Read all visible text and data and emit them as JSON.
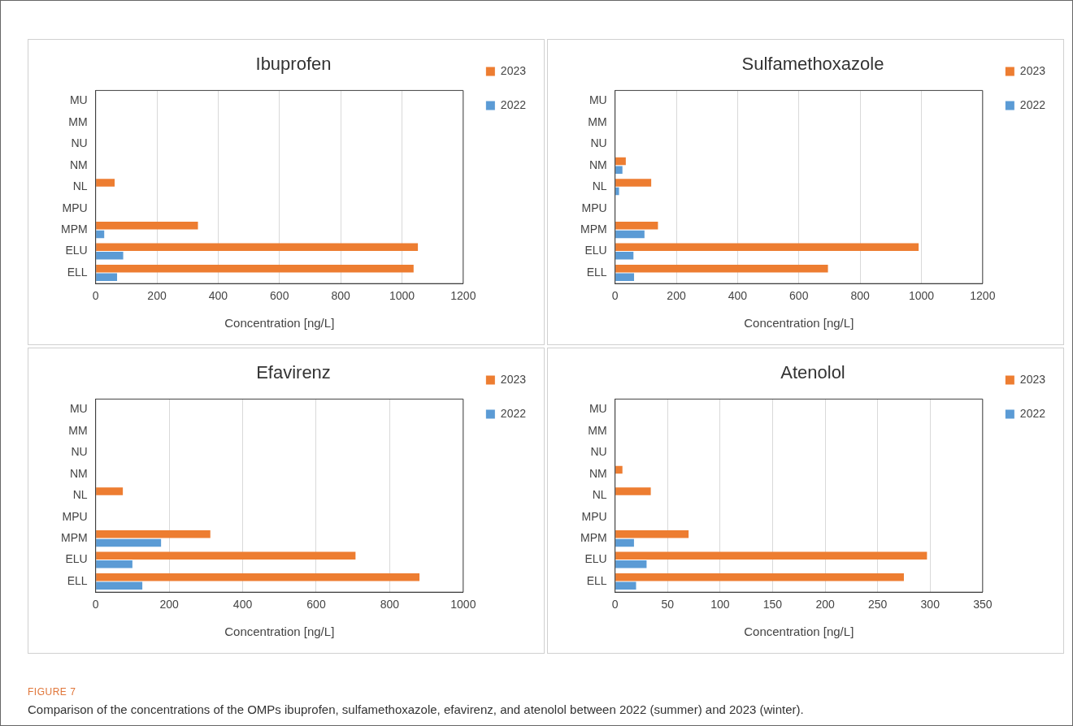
{
  "chart_data": [
    {
      "type": "bar",
      "orientation": "horizontal",
      "title": "Ibuprofen",
      "xlabel": "Concentration [ng/L]",
      "categories": [
        "MU",
        "MM",
        "NU",
        "NM",
        "NL",
        "MPU",
        "MPM",
        "ELU",
        "ELL"
      ],
      "xlim": [
        0,
        1200
      ],
      "xticks": [
        0,
        200,
        400,
        600,
        800,
        1000,
        1200
      ],
      "grid": "x",
      "legend": "right",
      "series": [
        {
          "name": "2023",
          "color": "#ed7d31",
          "values": [
            null,
            null,
            null,
            null,
            62,
            null,
            334,
            1052,
            1038
          ]
        },
        {
          "name": "2022",
          "color": "#5b9bd5",
          "values": [
            null,
            null,
            null,
            null,
            null,
            null,
            28,
            90,
            70
          ]
        }
      ]
    },
    {
      "type": "bar",
      "orientation": "horizontal",
      "title": "Sulfamethoxazole",
      "xlabel": "Concentration [ng/L]",
      "categories": [
        "MU",
        "MM",
        "NU",
        "NM",
        "NL",
        "MPU",
        "MPM",
        "ELU",
        "ELL"
      ],
      "xlim": [
        0,
        1200
      ],
      "xticks": [
        0,
        200,
        400,
        600,
        800,
        1000,
        1200
      ],
      "grid": "x",
      "legend": "right",
      "series": [
        {
          "name": "2023",
          "color": "#ed7d31",
          "values": [
            null,
            null,
            null,
            35,
            118,
            null,
            140,
            991,
            695
          ]
        },
        {
          "name": "2022",
          "color": "#5b9bd5",
          "values": [
            null,
            null,
            null,
            24,
            13,
            null,
            96,
            60,
            62
          ]
        }
      ]
    },
    {
      "type": "bar",
      "orientation": "horizontal",
      "title": "Efavirenz",
      "xlabel": "Concentration [ng/L]",
      "categories": [
        "MU",
        "MM",
        "NU",
        "NM",
        "NL",
        "MPU",
        "MPM",
        "ELU",
        "ELL"
      ],
      "xlim": [
        0,
        1000
      ],
      "xticks": [
        0,
        200,
        400,
        600,
        800,
        1000
      ],
      "grid": "x",
      "legend": "right",
      "series": [
        {
          "name": "2023",
          "color": "#ed7d31",
          "values": [
            null,
            null,
            null,
            null,
            74,
            null,
            312,
            707,
            881
          ]
        },
        {
          "name": "2022",
          "color": "#5b9bd5",
          "values": [
            null,
            null,
            null,
            null,
            null,
            null,
            178,
            100,
            127
          ]
        }
      ]
    },
    {
      "type": "bar",
      "orientation": "horizontal",
      "title": "Atenolol",
      "xlabel": "Concentration [ng/L]",
      "categories": [
        "MU",
        "MM",
        "NU",
        "NM",
        "NL",
        "MPU",
        "MPM",
        "ELU",
        "ELL"
      ],
      "xlim": [
        0,
        350
      ],
      "xticks": [
        0,
        50,
        100,
        150,
        200,
        250,
        300,
        350
      ],
      "grid": "x",
      "legend": "right",
      "annotations": [
        "FIGURE 7",
        "Comparison of the concentrations of the OMPs ibuprofen, sulfamethoxazole, efavirenz, and atenolol between 2022 (summer) and 2023 (winter)."
      ],
      "series": [
        {
          "name": "2023",
          "color": "#ed7d31",
          "values": [
            null,
            null,
            null,
            7,
            34,
            null,
            70,
            297,
            275
          ]
        },
        {
          "name": "2022",
          "color": "#5b9bd5",
          "values": [
            null,
            null,
            null,
            null,
            null,
            null,
            18,
            30,
            20
          ]
        }
      ]
    }
  ]
}
